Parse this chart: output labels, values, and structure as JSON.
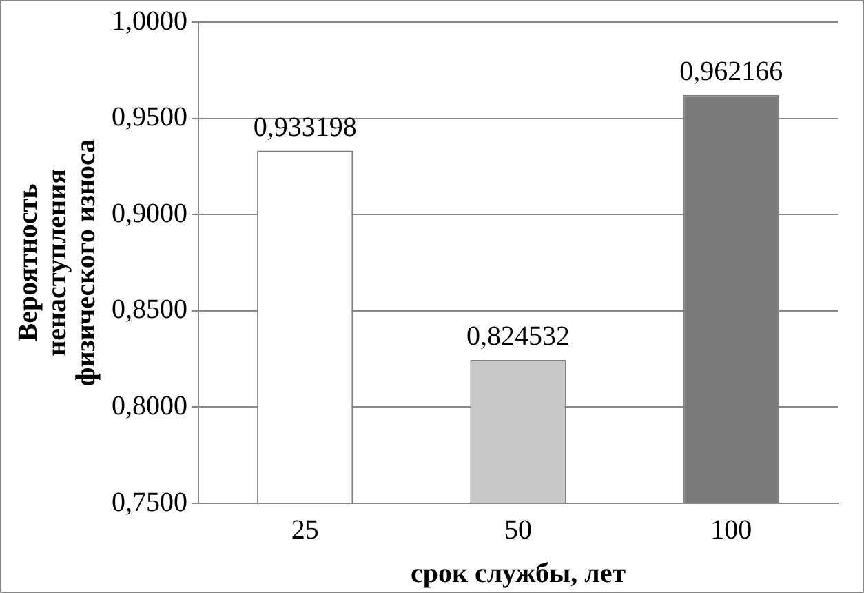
{
  "chart_data": {
    "type": "bar",
    "xlabel": "срок службы, лет",
    "ylabel": "Вероятность ненаступления физического износа",
    "categories": [
      "25",
      "50",
      "100"
    ],
    "values": [
      0.933198,
      0.824532,
      0.962166
    ],
    "colors": [
      "#ffffff",
      "#c8c8c8",
      "#7a7a7a"
    ],
    "value_labels": [
      "0,933198",
      "0,824532",
      "0,962166"
    ],
    "ylim": [
      0.75,
      1.0
    ],
    "yticks": [
      {
        "value": 0.75,
        "label": "0,7500"
      },
      {
        "value": 0.8,
        "label": "0,8000"
      },
      {
        "value": 0.85,
        "label": "0,8500"
      },
      {
        "value": 0.9,
        "label": "0,9000"
      },
      {
        "value": 0.95,
        "label": "0,9500"
      },
      {
        "value": 1.0,
        "label": "1,0000"
      }
    ],
    "grid": "y",
    "legend": false
  }
}
